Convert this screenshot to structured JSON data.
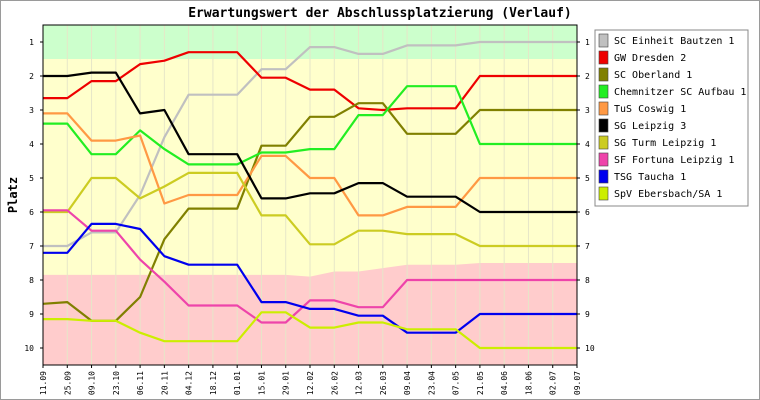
{
  "chart_data": {
    "type": "line",
    "title": "Erwartungswert der Abschlussplatzierung (Verlauf)",
    "ylabel": "Platz",
    "ylim": [
      0.5,
      10.5
    ],
    "y_inverted": true,
    "yticks": [
      1,
      2,
      3,
      4,
      5,
      6,
      7,
      8,
      9,
      10
    ],
    "x": [
      "11.09",
      "25.09",
      "09.10",
      "23.10",
      "06.11",
      "20.11",
      "04.12",
      "18.12",
      "01.01",
      "15.01",
      "29.01",
      "12.02",
      "26.02",
      "12.03",
      "26.03",
      "09.04",
      "23.04",
      "07.05",
      "21.05",
      "04.06",
      "18.06",
      "02.07",
      "09.07"
    ],
    "bands": [
      {
        "label": "promotion",
        "color": "#ccffcc",
        "to": [
          1.5,
          1.5,
          1.5,
          1.5,
          1.5,
          1.5,
          1.5,
          1.5,
          1.5,
          1.5,
          1.5,
          1.5,
          1.5,
          1.5,
          1.5,
          1.5,
          1.5,
          1.5,
          1.5,
          1.5,
          1.5,
          1.5,
          1.5
        ]
      },
      {
        "label": "relegation",
        "color": "#ffcccc",
        "from": [
          7.85,
          7.85,
          7.85,
          7.85,
          7.85,
          7.85,
          7.85,
          7.85,
          7.85,
          7.85,
          7.85,
          7.9,
          7.75,
          7.75,
          7.65,
          7.55,
          7.55,
          7.55,
          7.5,
          7.5,
          7.5,
          7.5,
          7.5
        ]
      }
    ],
    "series": [
      {
        "name": "SC Einheit Bautzen 1",
        "color": "#c0c0c0",
        "values": [
          7.0,
          7.0,
          6.6,
          6.6,
          5.5,
          3.8,
          2.55,
          2.55,
          2.55,
          1.8,
          1.8,
          1.15,
          1.15,
          1.35,
          1.35,
          1.1,
          1.1,
          1.1,
          1.0,
          1.0,
          1.0,
          1.0,
          1.0
        ]
      },
      {
        "name": "GW Dresden 2",
        "color": "#ee0000",
        "values": [
          2.65,
          2.65,
          2.15,
          2.15,
          1.65,
          1.55,
          1.3,
          1.3,
          1.3,
          2.05,
          2.05,
          2.4,
          2.4,
          2.95,
          3.0,
          2.95,
          2.95,
          2.95,
          2.0,
          2.0,
          2.0,
          2.0,
          2.0
        ]
      },
      {
        "name": "SC Oberland 1",
        "color": "#808000",
        "values": [
          8.7,
          8.65,
          9.2,
          9.2,
          8.5,
          6.8,
          5.9,
          5.9,
          5.9,
          4.05,
          4.05,
          3.2,
          3.2,
          2.8,
          2.8,
          3.7,
          3.7,
          3.7,
          3.0,
          3.0,
          3.0,
          3.0,
          3.0
        ]
      },
      {
        "name": "Chemnitzer SC Aufbau 1",
        "color": "#22ee22",
        "values": [
          3.4,
          3.4,
          4.3,
          4.3,
          3.6,
          4.15,
          4.6,
          4.6,
          4.6,
          4.25,
          4.25,
          4.15,
          4.15,
          3.15,
          3.15,
          2.3,
          2.3,
          2.3,
          4.0,
          4.0,
          4.0,
          4.0,
          4.0
        ]
      },
      {
        "name": "TuS Coswig 1",
        "color": "#ff9944",
        "values": [
          3.1,
          3.1,
          3.9,
          3.9,
          3.75,
          5.75,
          5.5,
          5.5,
          5.5,
          4.35,
          4.35,
          5.0,
          5.0,
          6.1,
          6.1,
          5.85,
          5.85,
          5.85,
          5.0,
          5.0,
          5.0,
          5.0,
          5.0
        ]
      },
      {
        "name": "SG Leipzig 3",
        "color": "#000000",
        "values": [
          2.0,
          2.0,
          1.9,
          1.9,
          3.1,
          3.0,
          4.3,
          4.3,
          4.3,
          5.6,
          5.6,
          5.45,
          5.45,
          5.15,
          5.15,
          5.55,
          5.55,
          5.55,
          6.0,
          6.0,
          6.0,
          6.0,
          6.0
        ]
      },
      {
        "name": "SG Turm Leipzig 1",
        "color": "#cccc22",
        "values": [
          6.0,
          6.0,
          5.0,
          5.0,
          5.6,
          5.25,
          4.85,
          4.85,
          4.85,
          6.1,
          6.1,
          6.95,
          6.95,
          6.55,
          6.55,
          6.65,
          6.65,
          6.65,
          7.0,
          7.0,
          7.0,
          7.0,
          7.0
        ]
      },
      {
        "name": "SF Fortuna Leipzig 1",
        "color": "#ee44aa",
        "values": [
          5.95,
          5.95,
          6.55,
          6.55,
          7.4,
          8.05,
          8.75,
          8.75,
          8.75,
          9.25,
          9.25,
          8.6,
          8.6,
          8.8,
          8.8,
          8.0,
          8.0,
          8.0,
          8.0,
          8.0,
          8.0,
          8.0,
          8.0
        ]
      },
      {
        "name": "TSG Taucha 1",
        "color": "#0000ee",
        "values": [
          7.2,
          7.2,
          6.35,
          6.35,
          6.5,
          7.3,
          7.55,
          7.55,
          7.55,
          8.65,
          8.65,
          8.85,
          8.85,
          9.05,
          9.05,
          9.55,
          9.55,
          9.55,
          9.0,
          9.0,
          9.0,
          9.0,
          9.0
        ]
      },
      {
        "name": "SpV Ebersbach/SA 1",
        "color": "#ccee00",
        "values": [
          9.15,
          9.15,
          9.2,
          9.2,
          9.55,
          9.8,
          9.8,
          9.8,
          9.8,
          8.95,
          8.95,
          9.4,
          9.4,
          9.25,
          9.25,
          9.45,
          9.45,
          9.45,
          10.0,
          10.0,
          10.0,
          10.0,
          10.0
        ]
      }
    ]
  }
}
